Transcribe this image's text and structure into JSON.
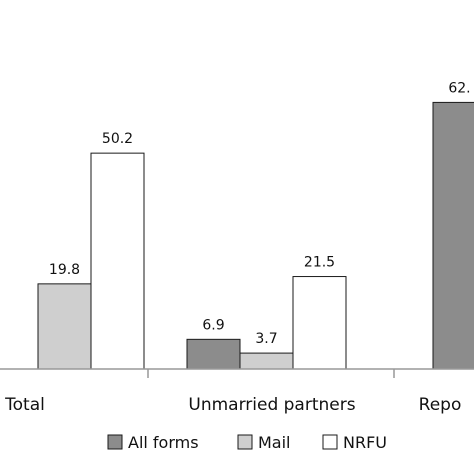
{
  "chart_data": {
    "type": "bar",
    "categories": [
      "Total",
      "Unmarried partners",
      "Repo"
    ],
    "series": [
      {
        "name": "All forms",
        "values": [
          null,
          6.9,
          62.0
        ]
      },
      {
        "name": "Mail",
        "values": [
          19.8,
          3.7,
          null
        ]
      },
      {
        "name": "NRFU",
        "values": [
          50.2,
          21.5,
          null
        ]
      }
    ],
    "data_labels": [
      [
        "",
        "19.8",
        "50.2"
      ],
      [
        "6.9",
        "3.7",
        "21.5"
      ],
      [
        "62.",
        "",
        ""
      ]
    ],
    "ylim": [
      0,
      70
    ],
    "grid": false,
    "legend_position": "bottom",
    "colors": {
      "All forms": "#8c8c8c",
      "Mail": "#cfcfcf",
      "NRFU": "#ffffff",
      "stroke": "#1a1a1a",
      "axis": "#999999"
    }
  }
}
